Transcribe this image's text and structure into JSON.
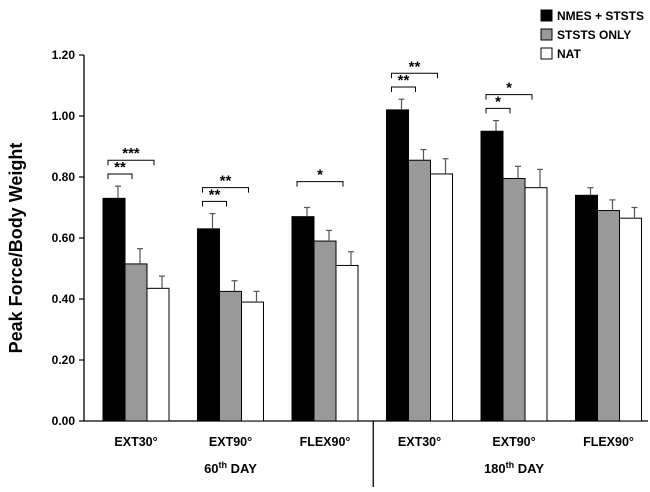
{
  "chart_data": {
    "type": "bar",
    "title": "",
    "xlabel": "",
    "ylabel": "Peak Force/Body Weight",
    "ylim": [
      0,
      1.2
    ],
    "yticks": [
      "0.00",
      "0.20",
      "0.40",
      "0.60",
      "0.80",
      "1.00",
      "1.20"
    ],
    "grid": false,
    "legend_position": "top-right",
    "categories": [
      "EXT30°",
      "EXT90°",
      "FLEX90°",
      "EXT30°",
      "EXT90°",
      "FLEX90°"
    ],
    "groups": [
      {
        "label_main": "60",
        "label_sup": "th",
        "label_rest": " DAY",
        "categories": [
          0,
          1,
          2
        ]
      },
      {
        "label_main": "180",
        "label_sup": "th",
        "label_rest": " DAY",
        "categories": [
          3,
          4,
          5
        ]
      }
    ],
    "series": [
      {
        "name": "NMES + STSTS",
        "color": "#000000",
        "values": [
          0.73,
          0.63,
          0.67,
          1.02,
          0.95,
          0.74
        ],
        "errors": [
          0.04,
          0.05,
          0.03,
          0.035,
          0.035,
          0.025
        ]
      },
      {
        "name": "STSTS ONLY",
        "color": "#999999",
        "values": [
          0.515,
          0.425,
          0.59,
          0.855,
          0.795,
          0.69
        ],
        "errors": [
          0.05,
          0.035,
          0.035,
          0.035,
          0.04,
          0.035
        ]
      },
      {
        "name": "NAT",
        "color": "#ffffff",
        "values": [
          0.435,
          0.39,
          0.51,
          0.81,
          0.765,
          0.665
        ],
        "errors": [
          0.04,
          0.035,
          0.045,
          0.05,
          0.06,
          0.035
        ]
      }
    ],
    "significance": [
      {
        "category": 0,
        "from": 0,
        "to": 1,
        "label": "**"
      },
      {
        "category": 0,
        "from": 0,
        "to": 2,
        "label": "***"
      },
      {
        "category": 1,
        "from": 0,
        "to": 1,
        "label": "**"
      },
      {
        "category": 1,
        "from": 0,
        "to": 2,
        "label": "**"
      },
      {
        "category": 2,
        "from": 0,
        "to": 2,
        "label": "*"
      },
      {
        "category": 3,
        "from": 0,
        "to": 1,
        "label": "**"
      },
      {
        "category": 3,
        "from": 0,
        "to": 2,
        "label": "**"
      },
      {
        "category": 4,
        "from": 0,
        "to": 1,
        "label": "*"
      },
      {
        "category": 4,
        "from": 0,
        "to": 2,
        "label": "*"
      }
    ]
  }
}
